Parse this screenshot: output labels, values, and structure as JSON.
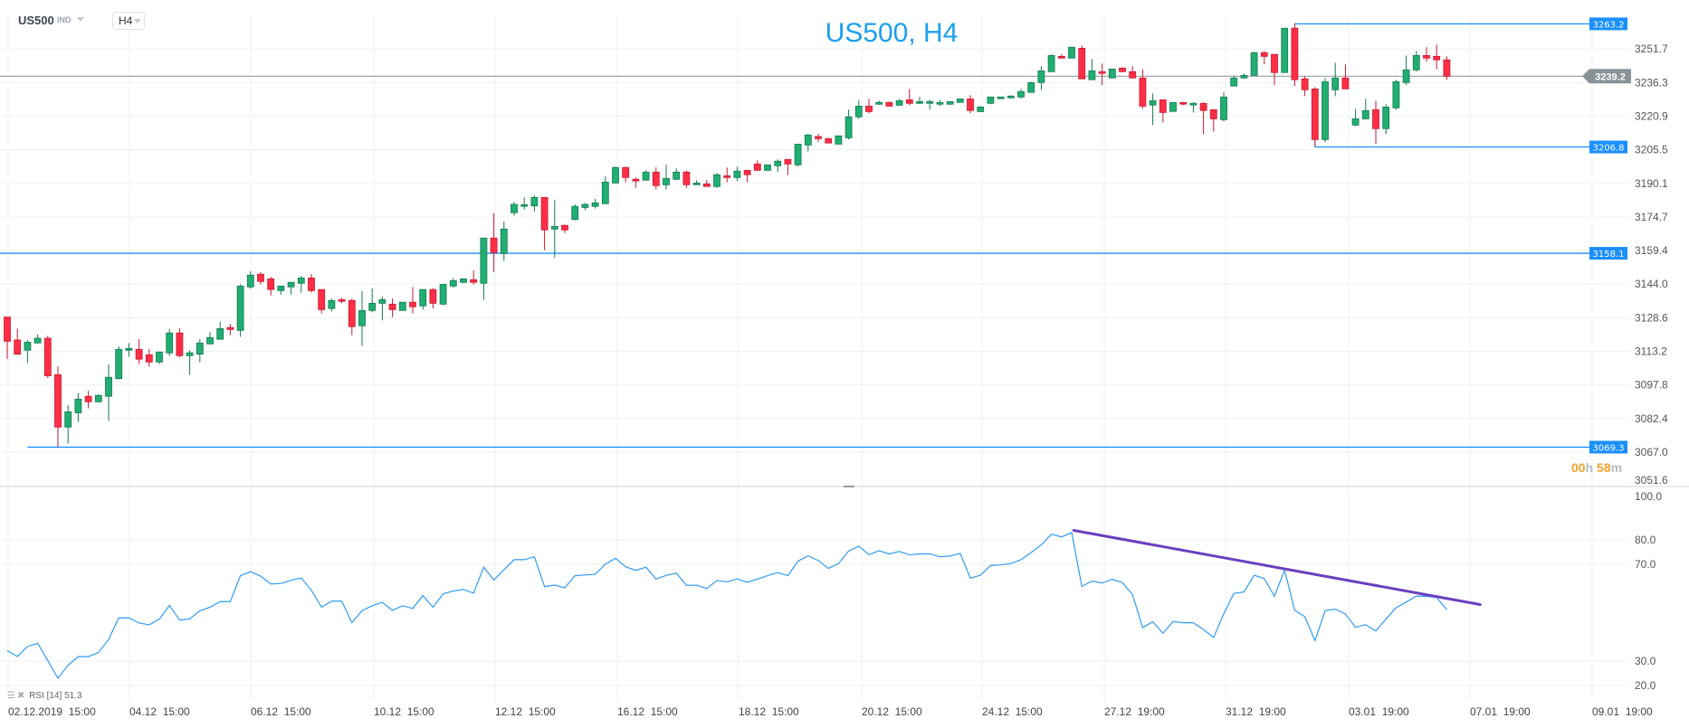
{
  "header": {
    "symbol": "US500",
    "type": "IND",
    "timeframe": "H4"
  },
  "title": "US500, H4",
  "countdown": {
    "hours": "00",
    "h_unit": "h",
    "minutes": "58",
    "m_unit": "m"
  },
  "rsi_legend": {
    "name": "RSI",
    "period": "[14]",
    "value": "51.3"
  },
  "colors": {
    "up": "#21ae73",
    "down": "#ff2e46",
    "level": "#1a8fff",
    "rsi": "#2f9bf5",
    "trend": "#6a3fbf",
    "price_tag": "#8a9297"
  },
  "chart_data": [
    {
      "type": "candlestick",
      "title": "US500, H4",
      "ylim": [
        3051.6,
        3270.0
      ],
      "yticks": [
        "3251.7",
        "3236.3",
        "3220.9",
        "3205.5",
        "3190.1",
        "3174.7",
        "3159.4",
        "3144.0",
        "3128.6",
        "3113.2",
        "3097.8",
        "3082.4",
        "3067.0",
        "3051.6"
      ],
      "xticks": [
        "02.12.2019  15:00",
        "04.12  15:00",
        "06.12  15:00",
        "10.12  15:00",
        "12.12  15:00",
        "16.12  15:00",
        "18.12  15:00",
        "20.12  15:00",
        "24.12  15:00",
        "27.12  19:00",
        "31.12  19:00",
        "03.01  19:00",
        "07.01  19:00",
        "09.01  19:00"
      ],
      "current_price": "3239.2",
      "levels": [
        {
          "price": 3263.2,
          "label": "3263.2",
          "from_candle": 127
        },
        {
          "price": 3206.8,
          "label": "3206.8",
          "from_candle": 129
        },
        {
          "price": 3158.1,
          "label": "3158.1",
          "from_candle": -1
        },
        {
          "price": 3069.3,
          "label": "3069.3",
          "from_candle": 2
        }
      ],
      "ohlc": [
        [
          3128.9,
          3128.9,
          3109.6,
          3117.8
        ],
        [
          3118.4,
          3123.6,
          3111.5,
          3111.9
        ],
        [
          3113.7,
          3118.4,
          3107.8,
          3117.4
        ],
        [
          3117.0,
          3120.9,
          3117.0,
          3119.2
        ],
        [
          3119.2,
          3120.3,
          3100.9,
          3102.0
        ],
        [
          3102.5,
          3106.4,
          3069.3,
          3078.5
        ],
        [
          3078.5,
          3088.6,
          3070.9,
          3085.5
        ],
        [
          3085.0,
          3094.0,
          3080.8,
          3091.3
        ],
        [
          3092.6,
          3095.1,
          3087.1,
          3090.1
        ],
        [
          3090.1,
          3093.5,
          3089.8,
          3093.0
        ],
        [
          3092.6,
          3107.2,
          3081.3,
          3101.3
        ],
        [
          3100.7,
          3115.5,
          3100.3,
          3114.1
        ],
        [
          3113.7,
          3117.0,
          3110.7,
          3114.5
        ],
        [
          3114.1,
          3118.8,
          3107.4,
          3109.6
        ],
        [
          3111.6,
          3114.3,
          3106.1,
          3108.3
        ],
        [
          3108.3,
          3112.9,
          3107.4,
          3112.9
        ],
        [
          3112.5,
          3123.4,
          3111.1,
          3121.6
        ],
        [
          3121.6,
          3123.8,
          3110.4,
          3111.2
        ],
        [
          3111.2,
          3113.7,
          3102.4,
          3112.5
        ],
        [
          3111.9,
          3118.8,
          3108.2,
          3117.0
        ],
        [
          3116.6,
          3122.1,
          3116.6,
          3119.5
        ],
        [
          3118.7,
          3126.7,
          3118.7,
          3123.6
        ],
        [
          3124.1,
          3125.7,
          3120.6,
          3123.2
        ],
        [
          3122.8,
          3143.9,
          3119.8,
          3143.1
        ],
        [
          3142.7,
          3149.9,
          3141.9,
          3148.1
        ],
        [
          3148.5,
          3149.5,
          3143.8,
          3145.2
        ],
        [
          3146.4,
          3147.3,
          3138.8,
          3141.5
        ],
        [
          3141.0,
          3143.1,
          3139.2,
          3143.1
        ],
        [
          3142.7,
          3144.8,
          3139.2,
          3144.8
        ],
        [
          3144.4,
          3147.7,
          3140.1,
          3146.8
        ],
        [
          3146.8,
          3148.6,
          3140.1,
          3141.0
        ],
        [
          3141.5,
          3141.5,
          3130.5,
          3132.3
        ],
        [
          3132.8,
          3137.3,
          3131.4,
          3136.5
        ],
        [
          3136.9,
          3137.7,
          3135.2,
          3136.1
        ],
        [
          3136.5,
          3137.3,
          3120.6,
          3124.5
        ],
        [
          3124.9,
          3140.8,
          3115.6,
          3131.9
        ],
        [
          3131.9,
          3142.0,
          3131.1,
          3135.2
        ],
        [
          3135.2,
          3138.3,
          3127.4,
          3136.9
        ],
        [
          3134.8,
          3137.4,
          3128.9,
          3132.3
        ],
        [
          3131.9,
          3135.7,
          3131.9,
          3135.7
        ],
        [
          3135.7,
          3142.6,
          3130.5,
          3133.6
        ],
        [
          3134.0,
          3141.5,
          3132.2,
          3141.5
        ],
        [
          3141.5,
          3142.1,
          3132.8,
          3135.2
        ],
        [
          3134.8,
          3143.9,
          3134.4,
          3143.9
        ],
        [
          3143.1,
          3146.8,
          3142.3,
          3145.6
        ],
        [
          3144.8,
          3146.4,
          3144.4,
          3146.4
        ],
        [
          3146.0,
          3150.3,
          3143.8,
          3144.8
        ],
        [
          3144.4,
          3165.1,
          3136.8,
          3165.1
        ],
        [
          3165.1,
          3176.5,
          3149.6,
          3158.4
        ],
        [
          3158.0,
          3172.7,
          3154.6,
          3169.2
        ],
        [
          3176.7,
          3181.6,
          3175.4,
          3180.5
        ],
        [
          3179.6,
          3183.7,
          3178.2,
          3180.4
        ],
        [
          3179.8,
          3184.7,
          3177.3,
          3183.7
        ],
        [
          3183.7,
          3183.7,
          3159.5,
          3168.8
        ],
        [
          3169.2,
          3182.6,
          3156.2,
          3170.4
        ],
        [
          3170.9,
          3171.3,
          3167.4,
          3168.8
        ],
        [
          3173.6,
          3180.5,
          3173.2,
          3179.6
        ],
        [
          3179.1,
          3181.2,
          3177.8,
          3180.5
        ],
        [
          3179.6,
          3183.0,
          3178.6,
          3181.2
        ],
        [
          3180.8,
          3193.4,
          3180.8,
          3190.7
        ],
        [
          3190.3,
          3197.8,
          3190.3,
          3197.4
        ],
        [
          3197.4,
          3197.8,
          3190.6,
          3192.8
        ],
        [
          3192.0,
          3192.9,
          3188.1,
          3191.2
        ],
        [
          3191.6,
          3196.1,
          3191.6,
          3195.3
        ],
        [
          3195.3,
          3197.4,
          3187.3,
          3189.1
        ],
        [
          3189.5,
          3198.7,
          3187.3,
          3192.4
        ],
        [
          3192.0,
          3197.0,
          3191.6,
          3195.3
        ],
        [
          3195.3,
          3196.1,
          3188.1,
          3189.5
        ],
        [
          3189.5,
          3191.6,
          3189.5,
          3190.3
        ],
        [
          3189.9,
          3191.6,
          3188.7,
          3188.7
        ],
        [
          3188.7,
          3194.9,
          3188.1,
          3194.1
        ],
        [
          3193.6,
          3197.4,
          3190.6,
          3192.8
        ],
        [
          3192.8,
          3197.8,
          3191.2,
          3195.7
        ],
        [
          3196.1,
          3196.1,
          3190.6,
          3194.1
        ],
        [
          3199.0,
          3200.7,
          3196.1,
          3196.1
        ],
        [
          3196.1,
          3198.6,
          3196.1,
          3198.6
        ],
        [
          3198.2,
          3201.1,
          3195.3,
          3200.3
        ],
        [
          3201.1,
          3201.1,
          3193.9,
          3199.0
        ],
        [
          3198.6,
          3208.1,
          3197.8,
          3208.1
        ],
        [
          3207.7,
          3212.7,
          3204.7,
          3212.3
        ],
        [
          3211.6,
          3212.7,
          3209.2,
          3210.6
        ],
        [
          3210.6,
          3211.0,
          3208.6,
          3208.6
        ],
        [
          3208.1,
          3211.9,
          3208.1,
          3211.9
        ],
        [
          3211.0,
          3224.0,
          3210.2,
          3220.6
        ],
        [
          3220.6,
          3228.2,
          3219.7,
          3225.5
        ],
        [
          3225.5,
          3228.8,
          3222.2,
          3223.0
        ],
        [
          3226.4,
          3228.0,
          3226.1,
          3227.2
        ],
        [
          3227.2,
          3227.6,
          3225.5,
          3225.5
        ],
        [
          3225.9,
          3228.8,
          3225.9,
          3228.0
        ],
        [
          3228.4,
          3233.4,
          3225.9,
          3226.8
        ],
        [
          3226.8,
          3229.7,
          3226.4,
          3227.6
        ],
        [
          3226.8,
          3228.4,
          3223.9,
          3227.6
        ],
        [
          3226.4,
          3228.4,
          3225.5,
          3227.2
        ],
        [
          3226.4,
          3227.6,
          3226.1,
          3227.6
        ],
        [
          3227.2,
          3228.8,
          3227.2,
          3228.8
        ],
        [
          3228.8,
          3230.5,
          3222.2,
          3223.5
        ],
        [
          3223.0,
          3225.5,
          3223.0,
          3225.1
        ],
        [
          3226.8,
          3229.7,
          3226.4,
          3229.7
        ],
        [
          3228.9,
          3229.7,
          3228.9,
          3229.7
        ],
        [
          3229.3,
          3230.5,
          3228.9,
          3230.1
        ],
        [
          3229.7,
          3233.4,
          3228.9,
          3232.2
        ],
        [
          3231.8,
          3236.7,
          3231.8,
          3236.3
        ],
        [
          3236.3,
          3243.8,
          3232.9,
          3241.7
        ],
        [
          3241.3,
          3249.2,
          3241.3,
          3248.7
        ],
        [
          3248.3,
          3249.2,
          3247.5,
          3247.5
        ],
        [
          3247.5,
          3252.5,
          3247.5,
          3252.5
        ],
        [
          3252.0,
          3253.3,
          3238.0,
          3238.0
        ],
        [
          3237.6,
          3247.1,
          3237.6,
          3241.7
        ],
        [
          3241.3,
          3245.0,
          3235.1,
          3240.5
        ],
        [
          3238.4,
          3242.5,
          3238.4,
          3242.5
        ],
        [
          3242.9,
          3243.4,
          3241.3,
          3241.3
        ],
        [
          3241.3,
          3243.8,
          3238.4,
          3238.4
        ],
        [
          3238.4,
          3242.5,
          3224.3,
          3225.5
        ],
        [
          3226.0,
          3231.3,
          3216.8,
          3228.0
        ],
        [
          3228.4,
          3228.4,
          3218.1,
          3222.6
        ],
        [
          3223.1,
          3227.2,
          3223.1,
          3227.2
        ],
        [
          3227.2,
          3227.2,
          3226.0,
          3226.4
        ],
        [
          3226.0,
          3227.2,
          3222.6,
          3226.8
        ],
        [
          3226.8,
          3227.2,
          3212.7,
          3223.5
        ],
        [
          3223.9,
          3223.9,
          3213.9,
          3219.7
        ],
        [
          3219.3,
          3231.8,
          3218.5,
          3229.7
        ],
        [
          3234.7,
          3239.6,
          3234.7,
          3238.4
        ],
        [
          3238.4,
          3240.5,
          3238.0,
          3239.6
        ],
        [
          3239.6,
          3250.4,
          3239.6,
          3250.0
        ],
        [
          3250.0,
          3250.8,
          3244.6,
          3248.3
        ],
        [
          3249.2,
          3249.2,
          3235.1,
          3240.9
        ],
        [
          3240.9,
          3261.2,
          3240.9,
          3261.2
        ],
        [
          3261.2,
          3263.2,
          3234.7,
          3237.6
        ],
        [
          3238.0,
          3239.2,
          3230.1,
          3233.0
        ],
        [
          3233.4,
          3234.2,
          3206.8,
          3210.2
        ],
        [
          3210.2,
          3238.4,
          3209.0,
          3236.7
        ],
        [
          3233.0,
          3245.4,
          3230.0,
          3238.4
        ],
        [
          3238.4,
          3244.6,
          3233.4,
          3233.4
        ],
        [
          3216.8,
          3224.3,
          3216.4,
          3219.7
        ],
        [
          3219.7,
          3228.9,
          3219.7,
          3223.5
        ],
        [
          3223.9,
          3228.0,
          3208.1,
          3215.2
        ],
        [
          3215.2,
          3226.4,
          3212.7,
          3225.1
        ],
        [
          3224.7,
          3237.6,
          3223.9,
          3236.7
        ],
        [
          3236.3,
          3248.7,
          3235.1,
          3242.1
        ],
        [
          3242.1,
          3250.8,
          3241.3,
          3248.7
        ],
        [
          3248.7,
          3252.5,
          3245.8,
          3247.5
        ],
        [
          3248.3,
          3253.7,
          3242.5,
          3246.7
        ],
        [
          3246.7,
          3248.3,
          3237.6,
          3239.2
        ]
      ]
    },
    {
      "type": "line",
      "title": "RSI [14]",
      "ylim": [
        20,
        100
      ],
      "yticks": [
        "100.0",
        "80.0",
        "70.0",
        "30.0",
        "20.0"
      ],
      "values": [
        34.4,
        32.0,
        36.1,
        37.4,
        30.3,
        23.0,
        28.4,
        31.9,
        31.9,
        33.6,
        39.0,
        47.9,
        47.9,
        45.8,
        45.0,
        47.4,
        53.0,
        47.0,
        47.5,
        50.8,
        52.3,
        54.6,
        54.6,
        65.3,
        67.0,
        65.1,
        61.9,
        62.1,
        63.4,
        64.4,
        59.3,
        52.3,
        54.8,
        54.8,
        45.9,
        50.9,
        52.9,
        54.3,
        51.0,
        52.9,
        51.8,
        57.1,
        52.3,
        57.8,
        59.0,
        59.6,
        58.1,
        68.8,
        63.5,
        67.8,
        71.9,
        71.9,
        73.1,
        60.8,
        61.4,
        60.3,
        65.3,
        65.6,
        65.9,
        70.1,
        72.5,
        69.0,
        67.5,
        68.8,
        63.9,
        65.4,
        66.4,
        61.3,
        61.4,
        60.0,
        63.3,
        62.8,
        64.0,
        62.6,
        63.9,
        65.3,
        66.6,
        65.3,
        71.3,
        73.5,
        71.6,
        68.3,
        70.3,
        75.5,
        77.5,
        74.0,
        75.6,
        74.3,
        75.3,
        73.9,
        74.3,
        74.3,
        73.1,
        73.4,
        74.5,
        64.3,
        65.5,
        69.5,
        69.8,
        70.3,
        71.9,
        74.9,
        78.0,
        82.4,
        81.3,
        83.1,
        60.9,
        63.1,
        62.3,
        63.8,
        62.5,
        57.5,
        43.9,
        46.3,
        41.6,
        46.4,
        45.9,
        45.9,
        43.1,
        39.8,
        49.6,
        58.0,
        58.6,
        65.5,
        64.1,
        56.8,
        67.6,
        51.0,
        48.4,
        38.5,
        50.9,
        51.5,
        49.5,
        44.0,
        45.1,
        42.5,
        47.4,
        52.1,
        54.4,
        56.9,
        56.8,
        56.3,
        51.3
      ],
      "trendline": {
        "from": [
          105.2,
          84.0
        ],
        "to": [
          145.3,
          53.4
        ]
      }
    }
  ]
}
